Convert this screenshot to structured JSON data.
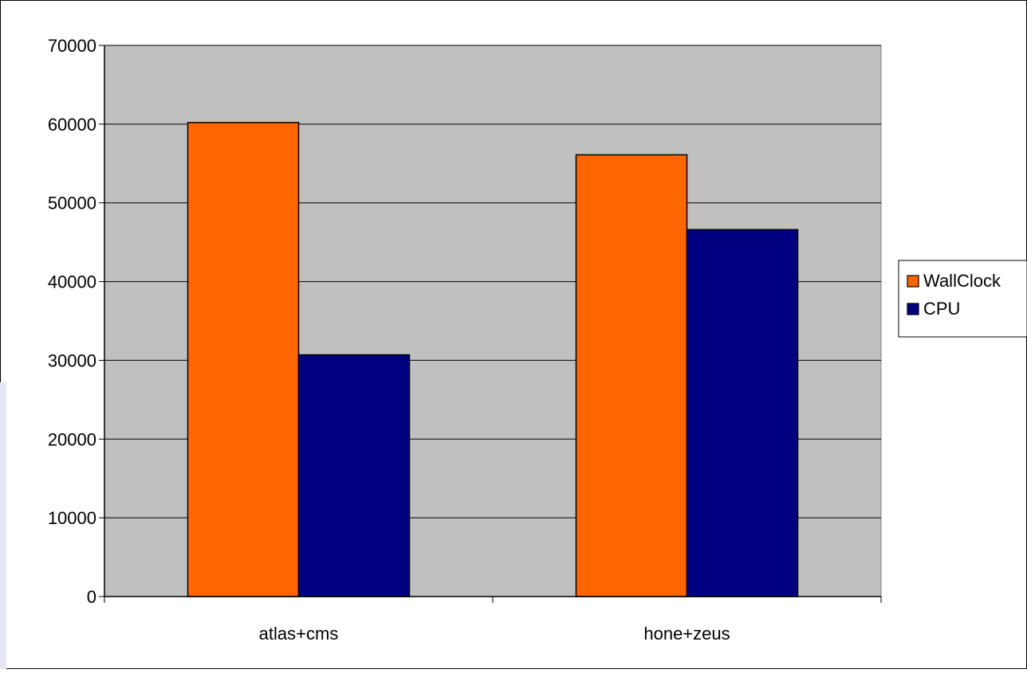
{
  "chart_data": {
    "type": "bar",
    "categories": [
      "atlas+cms",
      "hone+zeus"
    ],
    "series": [
      {
        "name": "WallClock",
        "values": [
          60200,
          56100
        ]
      },
      {
        "name": "CPU",
        "values": [
          30700,
          46600
        ]
      }
    ],
    "ylim": [
      0,
      70000
    ],
    "yticks": [
      0,
      10000,
      20000,
      30000,
      40000,
      50000,
      60000,
      70000
    ],
    "grid": true,
    "legend_position": "right",
    "colors": {
      "series": [
        "#FF6600",
        "#000080"
      ],
      "plot_background": "#C0C0C0",
      "page_background": "#FFFFFF",
      "edge_accent": "#E6E6F5"
    }
  }
}
